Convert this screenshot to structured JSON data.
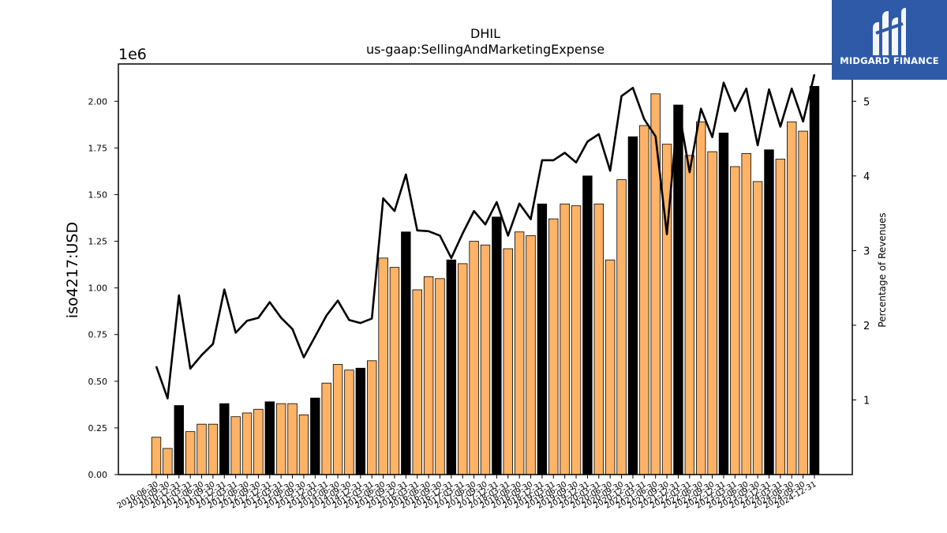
{
  "chart_data": {
    "type": "bar",
    "title": "DHIL",
    "subtitle": "us-gaap:SellingAndMarketingExpense",
    "ylabel": "iso4217:USD",
    "y_scale_note": "1e6",
    "y2label": "Percentage of Revenues",
    "ylim": [
      0,
      2200000
    ],
    "y2lim": [
      0.0,
      5.5
    ],
    "y_ticks": [
      "0.00",
      "0.25",
      "0.50",
      "0.75",
      "1.00",
      "1.25",
      "1.50",
      "1.75",
      "2.00"
    ],
    "y2_ticks": [
      "1",
      "2",
      "3",
      "4",
      "5"
    ],
    "grid": false,
    "categories": [
      "2010-06-30",
      "2010-09-30",
      "2010-12-31",
      "2011-03-31",
      "2011-06-30",
      "2011-09-30",
      "2011-12-31",
      "2012-03-31",
      "2012-06-30",
      "2012-09-30",
      "2012-12-31",
      "2013-03-31",
      "2013-06-30",
      "2013-09-30",
      "2013-12-31",
      "2014-03-31",
      "2014-06-30",
      "2014-09-30",
      "2014-12-31",
      "2015-03-31",
      "2015-06-30",
      "2015-09-30",
      "2015-12-31",
      "2016-03-31",
      "2016-06-30",
      "2016-09-30",
      "2016-12-31",
      "2017-03-31",
      "2017-06-30",
      "2017-09-30",
      "2017-12-31",
      "2018-03-31",
      "2018-06-30",
      "2018-09-30",
      "2018-12-31",
      "2019-03-31",
      "2019-06-30",
      "2019-09-30",
      "2019-12-31",
      "2020-03-31",
      "2020-06-30",
      "2020-09-30",
      "2020-12-31",
      "2021-03-31",
      "2021-06-30",
      "2021-09-30",
      "2021-12-31",
      "2022-03-31",
      "2022-06-30",
      "2022-09-30",
      "2022-12-31",
      "2023-03-31",
      "2023-06-30",
      "2023-09-30",
      "2023-12-31",
      "2024-03-31",
      "2024-06-30",
      "2024-09-30",
      "2024-12-31"
    ],
    "series": [
      {
        "type": "bar",
        "values": [
          200000,
          140000,
          370000,
          230000,
          270000,
          270000,
          380000,
          310000,
          330000,
          350000,
          390000,
          380000,
          380000,
          320000,
          410000,
          490000,
          590000,
          560000,
          570000,
          610000,
          1160000,
          1110000,
          1300000,
          990000,
          1060000,
          1050000,
          1150000,
          1130000,
          1250000,
          1230000,
          1380000,
          1210000,
          1300000,
          1280000,
          1450000,
          1370000,
          1450000,
          1440000,
          1600000,
          1450000,
          1150000,
          1580000,
          1810000,
          1870000,
          2040000,
          1770000,
          1980000,
          1710000,
          1890000,
          1730000,
          1830000,
          1650000,
          1720000,
          1570000,
          1740000,
          1690000,
          1890000,
          1840000,
          2080000
        ],
        "highlight": [
          2,
          6,
          10,
          14,
          18,
          22,
          26,
          30,
          34,
          38,
          42,
          46,
          50,
          54,
          58
        ],
        "color": "#ffb366",
        "highlight_color": "#000000"
      },
      {
        "type": "line",
        "name": "Percentage of Revenues",
        "values": [
          1.45,
          1.02,
          2.4,
          1.42,
          1.6,
          1.75,
          2.48,
          1.9,
          2.06,
          2.1,
          2.31,
          2.1,
          1.95,
          1.57,
          1.85,
          2.13,
          2.33,
          2.07,
          2.03,
          2.09,
          3.7,
          3.53,
          4.02,
          3.27,
          3.26,
          3.2,
          2.9,
          3.23,
          3.53,
          3.35,
          3.65,
          3.2,
          3.63,
          3.42,
          4.21,
          4.21,
          4.31,
          4.18,
          4.46,
          4.56,
          4.07,
          5.07,
          5.18,
          4.76,
          4.53,
          3.22,
          4.93,
          4.05,
          4.9,
          4.52,
          5.25,
          4.87,
          5.17,
          4.41,
          5.16,
          4.66,
          5.17,
          4.73,
          5.36
        ],
        "color": "#000000"
      }
    ]
  },
  "logo": {
    "text": "MIDGARD FINANCE"
  }
}
